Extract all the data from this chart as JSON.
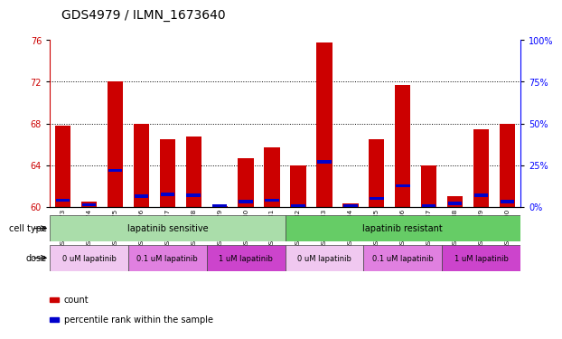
{
  "title": "GDS4979 / ILMN_1673640",
  "samples": [
    "GSM940873",
    "GSM940874",
    "GSM940875",
    "GSM940876",
    "GSM940877",
    "GSM940878",
    "GSM940879",
    "GSM940880",
    "GSM940881",
    "GSM940882",
    "GSM940883",
    "GSM940884",
    "GSM940885",
    "GSM940886",
    "GSM940887",
    "GSM940888",
    "GSM940889",
    "GSM940890"
  ],
  "red_heights": [
    67.8,
    60.5,
    72.0,
    68.0,
    66.5,
    66.7,
    60.1,
    64.7,
    65.7,
    64.0,
    75.8,
    60.3,
    66.5,
    71.7,
    64.0,
    61.0,
    67.4,
    68.0
  ],
  "blue_heights": [
    60.6,
    60.2,
    63.5,
    61.0,
    61.2,
    61.1,
    60.05,
    60.5,
    60.6,
    60.1,
    64.3,
    60.1,
    60.8,
    62.0,
    60.05,
    60.3,
    61.1,
    60.5
  ],
  "ymin": 60,
  "ymax": 76,
  "yticks_left": [
    60,
    64,
    68,
    72,
    76
  ],
  "right_tick_labels": [
    "0%",
    "25%",
    "50%",
    "75%",
    "100%"
  ],
  "right_tick_pos": [
    60,
    64,
    68,
    72,
    76
  ],
  "cell_type_groups": [
    {
      "label": "lapatinib sensitive",
      "start": 0,
      "end": 9,
      "color": "#AADDAA"
    },
    {
      "label": "lapatinib resistant",
      "start": 9,
      "end": 18,
      "color": "#66CC66"
    }
  ],
  "dose_groups": [
    {
      "label": "0 uM lapatinib",
      "start": 0,
      "end": 3,
      "color": "#F0C8F0"
    },
    {
      "label": "0.1 uM lapatinib",
      "start": 3,
      "end": 6,
      "color": "#E080E0"
    },
    {
      "label": "1 uM lapatinib",
      "start": 6,
      "end": 9,
      "color": "#CC44CC"
    },
    {
      "label": "0 uM lapatinib",
      "start": 9,
      "end": 12,
      "color": "#F0C8F0"
    },
    {
      "label": "0.1 uM lapatinib",
      "start": 12,
      "end": 15,
      "color": "#E080E0"
    },
    {
      "label": "1 uM lapatinib",
      "start": 15,
      "end": 18,
      "color": "#CC44CC"
    }
  ],
  "bar_color": "#CC0000",
  "blue_color": "#0000CC",
  "bar_width": 0.6,
  "bg_color": "#FFFFFF",
  "title_fontsize": 10,
  "tick_fontsize": 7,
  "label_fontsize": 7
}
